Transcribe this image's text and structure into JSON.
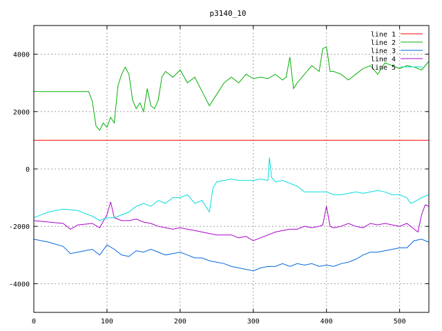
{
  "chart_data": {
    "type": "line",
    "title": "p3140_10",
    "xlabel": "",
    "ylabel": "",
    "xlim": [
      0,
      540
    ],
    "ylim": [
      -5000,
      5000
    ],
    "x_ticks": [
      0,
      100,
      200,
      300,
      400,
      500
    ],
    "y_ticks": [
      -4000,
      -2000,
      0,
      2000,
      4000
    ],
    "grid": true,
    "legend_position": "top-right",
    "series": [
      {
        "name": "line 1",
        "color": "#ff0000",
        "x": [
          0,
          540
        ],
        "y": [
          1000,
          1000
        ]
      },
      {
        "name": "line 2",
        "color": "#00b000",
        "x": [
          0,
          50,
          60,
          70,
          75,
          80,
          85,
          90,
          95,
          100,
          105,
          110,
          115,
          120,
          125,
          130,
          135,
          140,
          145,
          150,
          155,
          160,
          165,
          170,
          175,
          180,
          190,
          200,
          210,
          220,
          230,
          240,
          250,
          260,
          270,
          280,
          290,
          300,
          310,
          320,
          330,
          340,
          345,
          350,
          355,
          360,
          370,
          380,
          390,
          395,
          400,
          405,
          410,
          420,
          430,
          440,
          450,
          460,
          470,
          480,
          490,
          500,
          510,
          520,
          530,
          540
        ],
        "y": [
          2700,
          2700,
          2700,
          2700,
          2700,
          2350,
          1500,
          1350,
          1600,
          1450,
          1800,
          1600,
          2900,
          3300,
          3550,
          3300,
          2400,
          2100,
          2300,
          2000,
          2800,
          2200,
          2100,
          2400,
          3200,
          3400,
          3200,
          3450,
          3000,
          3200,
          2700,
          2200,
          2600,
          3000,
          3200,
          3000,
          3300,
          3150,
          3200,
          3150,
          3300,
          3100,
          3200,
          3900,
          2800,
          3000,
          3300,
          3600,
          3400,
          4200,
          4250,
          3400,
          3400,
          3300,
          3100,
          3300,
          3500,
          3600,
          3300,
          3700,
          3600,
          3500,
          3600,
          3550,
          3450,
          3750
        ]
      },
      {
        "name": "line 3",
        "color": "#0066dd",
        "x": [
          0,
          20,
          40,
          50,
          60,
          80,
          90,
          100,
          110,
          120,
          130,
          140,
          150,
          160,
          170,
          180,
          190,
          200,
          210,
          220,
          230,
          240,
          250,
          260,
          270,
          280,
          290,
          300,
          310,
          320,
          330,
          340,
          350,
          360,
          370,
          380,
          390,
          400,
          410,
          420,
          430,
          440,
          450,
          460,
          470,
          480,
          490,
          500,
          510,
          520,
          530,
          540
        ],
        "y": [
          -2450,
          -2550,
          -2700,
          -2950,
          -2900,
          -2800,
          -3000,
          -2650,
          -2800,
          -3000,
          -3050,
          -2850,
          -2900,
          -2800,
          -2900,
          -3000,
          -2950,
          -2900,
          -3000,
          -3100,
          -3100,
          -3200,
          -3250,
          -3300,
          -3400,
          -3450,
          -3500,
          -3550,
          -3450,
          -3400,
          -3400,
          -3300,
          -3400,
          -3300,
          -3350,
          -3300,
          -3400,
          -3350,
          -3400,
          -3300,
          -3250,
          -3150,
          -3000,
          -2900,
          -2900,
          -2850,
          -2800,
          -2750,
          -2750,
          -2500,
          -2450,
          -2550
        ]
      },
      {
        "name": "line 4",
        "color": "#aa00cc",
        "x": [
          0,
          20,
          40,
          50,
          60,
          80,
          90,
          100,
          105,
          110,
          120,
          130,
          140,
          150,
          160,
          170,
          180,
          190,
          200,
          210,
          220,
          230,
          240,
          250,
          260,
          270,
          280,
          290,
          300,
          310,
          320,
          330,
          340,
          350,
          360,
          370,
          380,
          390,
          395,
          400,
          405,
          410,
          420,
          430,
          440,
          450,
          460,
          470,
          480,
          490,
          500,
          510,
          520,
          525,
          530,
          535,
          540
        ],
        "y": [
          -1800,
          -1850,
          -1900,
          -2100,
          -1950,
          -1900,
          -2050,
          -1600,
          -1150,
          -1700,
          -1800,
          -1800,
          -1750,
          -1850,
          -1900,
          -2000,
          -2050,
          -2100,
          -2050,
          -2100,
          -2150,
          -2200,
          -2250,
          -2300,
          -2300,
          -2300,
          -2400,
          -2350,
          -2500,
          -2400,
          -2300,
          -2200,
          -2150,
          -2100,
          -2100,
          -2000,
          -2050,
          -2000,
          -1950,
          -1300,
          -2000,
          -2050,
          -2000,
          -1900,
          -2000,
          -2050,
          -1900,
          -1950,
          -1900,
          -1950,
          -2000,
          -1900,
          -2100,
          -2200,
          -1600,
          -1250,
          -1300
        ]
      },
      {
        "name": "line 5",
        "color": "#00dddd",
        "x": [
          0,
          20,
          40,
          60,
          80,
          90,
          100,
          110,
          120,
          130,
          140,
          150,
          160,
          170,
          180,
          190,
          200,
          210,
          220,
          230,
          240,
          245,
          250,
          260,
          270,
          280,
          290,
          300,
          310,
          320,
          322,
          325,
          330,
          340,
          350,
          360,
          370,
          380,
          390,
          400,
          410,
          420,
          430,
          440,
          450,
          460,
          470,
          480,
          490,
          500,
          510,
          515,
          520,
          530,
          540
        ],
        "y": [
          -1700,
          -1500,
          -1400,
          -1450,
          -1650,
          -1800,
          -1700,
          -1700,
          -1600,
          -1500,
          -1300,
          -1200,
          -1300,
          -1100,
          -1200,
          -1000,
          -1000,
          -900,
          -1200,
          -1100,
          -1500,
          -650,
          -450,
          -400,
          -350,
          -400,
          -400,
          -400,
          -350,
          -400,
          400,
          -300,
          -450,
          -400,
          -500,
          -600,
          -800,
          -800,
          -800,
          -800,
          -900,
          -900,
          -850,
          -800,
          -850,
          -800,
          -750,
          -800,
          -900,
          -900,
          -1000,
          -1200,
          -1150,
          -1000,
          -900
        ]
      }
    ]
  }
}
